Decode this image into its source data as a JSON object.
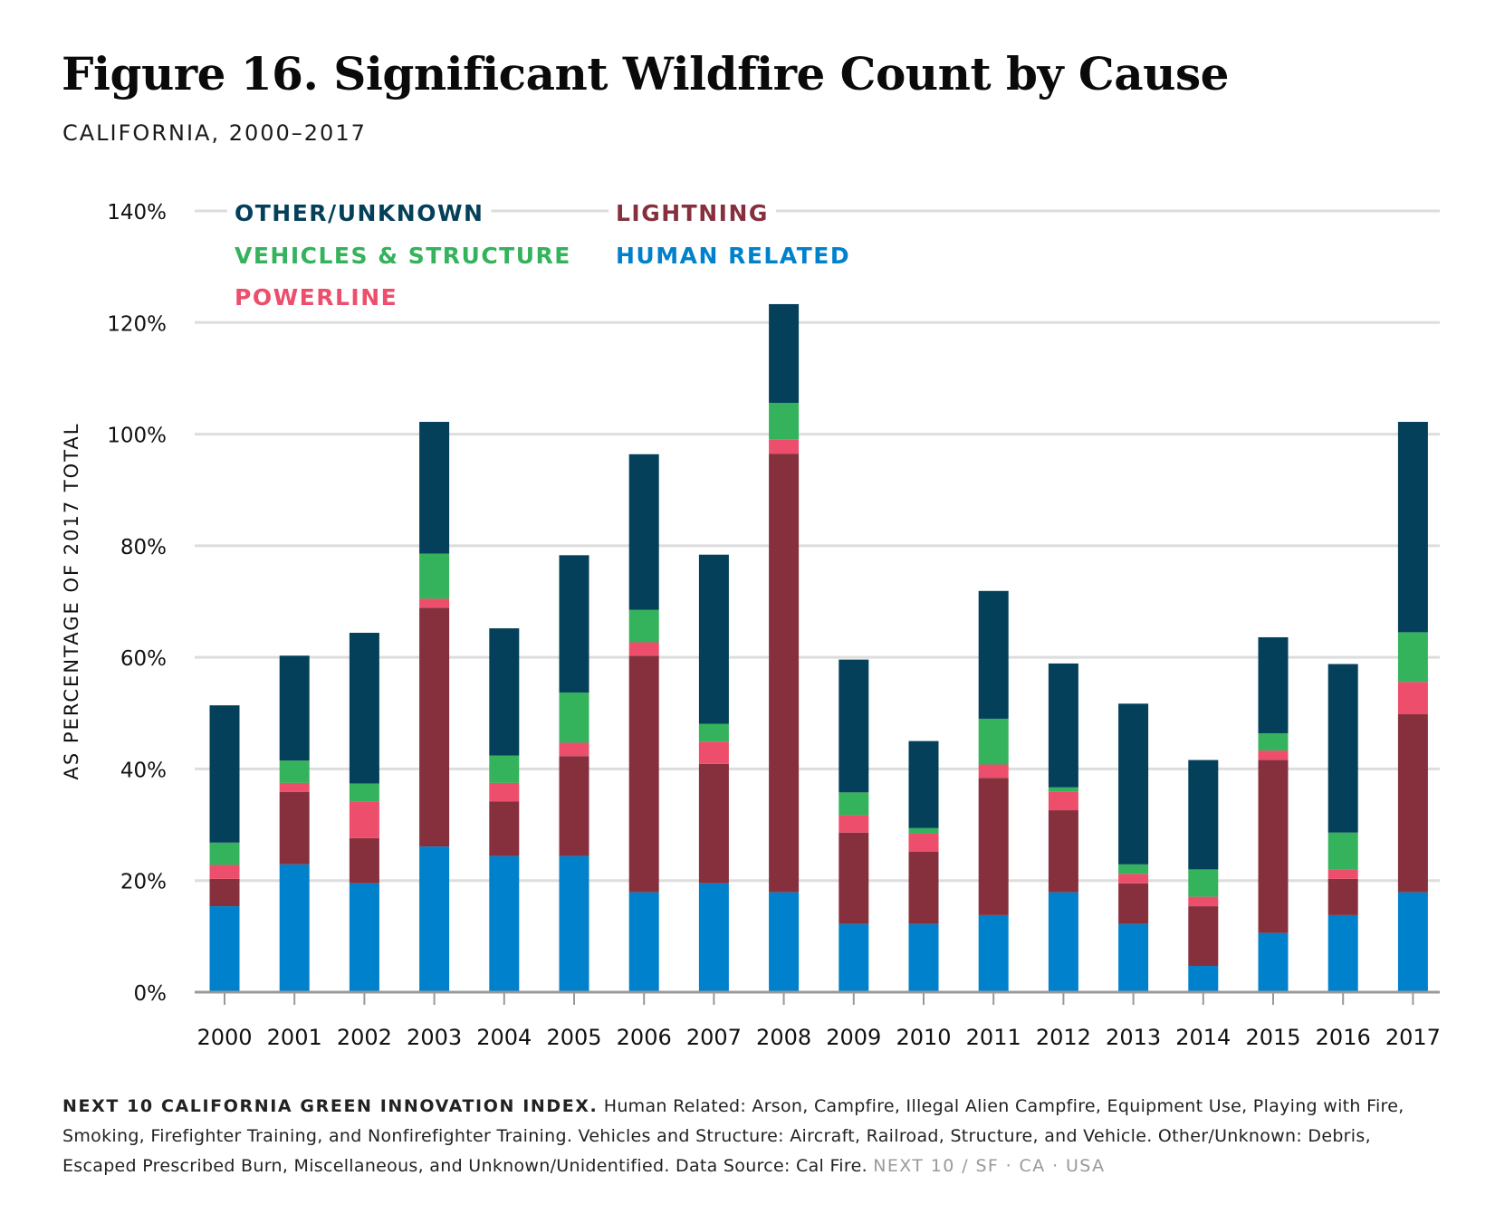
{
  "header": {
    "title": "Figure 16. Significant Wildfire Count by Cause",
    "subtitle": "CALIFORNIA, 2000–2017"
  },
  "colors": {
    "other_unknown": "#04405a",
    "vehicles_structure": "#34b25c",
    "powerline": "#ec4e6c",
    "lightning": "#86303e",
    "human_related": "#0081cc",
    "grid": "#dddddd",
    "axis": "#999999"
  },
  "chart_data": {
    "type": "bar",
    "stacked": true,
    "title": "Figure 16. Significant Wildfire Count by Cause",
    "subtitle": "CALIFORNIA, 2000–2017",
    "xlabel": "",
    "ylabel": "AS PERCENTAGE OF 2017 TOTAL",
    "ylim": [
      0,
      140
    ],
    "yticks": [
      0,
      20,
      40,
      60,
      80,
      100,
      120,
      140
    ],
    "ytick_labels": [
      "0%",
      "20%",
      "40%",
      "60%",
      "80%",
      "100%",
      "120%",
      "140%"
    ],
    "grid": true,
    "legend_position": "top-left",
    "categories": [
      "2000",
      "2001",
      "2002",
      "2003",
      "2004",
      "2005",
      "2006",
      "2007",
      "2008",
      "2009",
      "2010",
      "2011",
      "2012",
      "2013",
      "2014",
      "2015",
      "2016",
      "2017"
    ],
    "series": [
      {
        "name": "HUMAN RELATED",
        "color_key": "human_related",
        "values": [
          15.4,
          22.9,
          19.5,
          26.1,
          24.4,
          24.4,
          17.9,
          19.5,
          17.9,
          12.2,
          12.2,
          13.8,
          17.9,
          12.2,
          4.7,
          10.6,
          13.8,
          17.9
        ]
      },
      {
        "name": "LIGHTNING",
        "color_key": "lightning",
        "values": [
          4.9,
          13.0,
          8.1,
          42.8,
          9.8,
          17.9,
          42.4,
          21.4,
          78.6,
          16.4,
          13.0,
          24.6,
          14.7,
          7.3,
          10.7,
          31.0,
          6.5,
          31.9
        ]
      },
      {
        "name": "POWERLINE",
        "color_key": "powerline",
        "values": [
          2.5,
          1.6,
          6.6,
          1.6,
          3.3,
          2.4,
          2.4,
          4.0,
          2.5,
          3.1,
          3.2,
          2.4,
          3.3,
          1.7,
          1.7,
          1.7,
          1.7,
          5.8
        ]
      },
      {
        "name": "VEHICLES & STRUCTURE",
        "color_key": "vehicles_structure",
        "values": [
          4.0,
          4.0,
          3.2,
          8.1,
          4.9,
          9.0,
          5.8,
          3.2,
          6.6,
          4.1,
          1.0,
          8.2,
          0.8,
          1.7,
          4.9,
          3.1,
          6.6,
          8.9
        ]
      },
      {
        "name": "OTHER/UNKNOWN",
        "color_key": "other_unknown",
        "values": [
          24.6,
          18.8,
          27.0,
          23.6,
          22.8,
          24.6,
          27.9,
          30.3,
          17.7,
          23.8,
          15.6,
          22.9,
          22.2,
          28.8,
          19.6,
          17.2,
          30.2,
          37.7
        ]
      }
    ],
    "legend": [
      {
        "name": "OTHER/UNKNOWN",
        "color_key": "other_unknown"
      },
      {
        "name": "LIGHTNING",
        "color_key": "lightning"
      },
      {
        "name": "VEHICLES & STRUCTURE",
        "color_key": "vehicles_structure"
      },
      {
        "name": "HUMAN RELATED",
        "color_key": "human_related"
      },
      {
        "name": "POWERLINE",
        "color_key": "powerline"
      }
    ]
  },
  "footer": {
    "lead": "NEXT 10 CALIFORNIA GREEN INNOVATION INDEX.",
    "body": " Human Related: Arson, Campfire, Illegal Alien Campfire, Equipment Use, Playing with Fire, Smoking, Firefighter Training, and Nonfirefighter Training. Vehicles and Structure: Aircraft, Railroad, Structure, and Vehicle. Other/Unknown: Debris, Escaped Prescribed Burn, Miscellaneous, and Unknown/Unidentified. Data Source: Cal Fire. ",
    "credit": " NEXT 10  /  SF · CA · USA"
  }
}
